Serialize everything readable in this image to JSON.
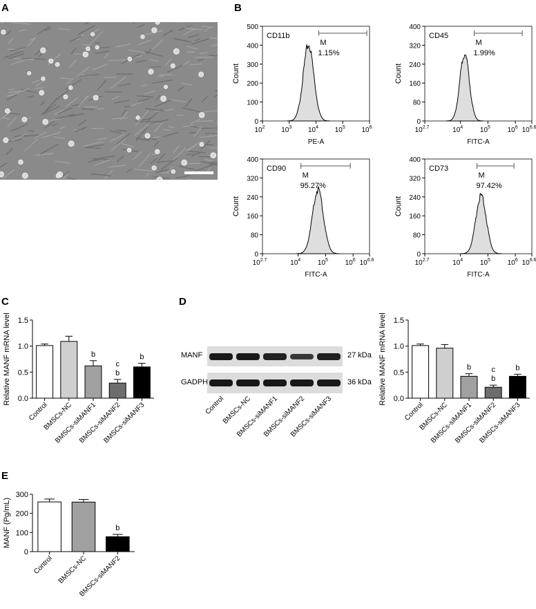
{
  "panels": {
    "A": "A",
    "B": "B",
    "C": "C",
    "D": "D",
    "E": "E"
  },
  "chart_data": [
    {
      "type": "histogram",
      "panel": "B",
      "marker": "CD11b",
      "xlabel": "PE-A",
      "ylabel": "Count",
      "gate_label": "M",
      "gate_percent": "1.15%",
      "x_scale": "log",
      "x_ticks": [
        {
          "e": "2",
          "v": 2
        },
        {
          "e": "3",
          "v": 3
        },
        {
          "e": "4",
          "v": 4
        },
        {
          "e": "5",
          "v": 5
        },
        {
          "e": "6",
          "v": 6
        }
      ],
      "xlim": [
        2,
        6
      ],
      "ylim": [
        0,
        500
      ],
      "y_ticks": [
        0,
        100,
        200,
        300,
        400,
        500
      ],
      "gate": [
        4.1,
        5.9
      ],
      "peak": {
        "center": 3.72,
        "height": 400,
        "sigma": 0.2
      }
    },
    {
      "type": "histogram",
      "panel": "B",
      "marker": "CD45",
      "xlabel": "FITC-A",
      "ylabel": "Count",
      "gate_label": "M",
      "gate_percent": "1.99%",
      "x_scale": "log",
      "x_ticks": [
        {
          "e": "2.7",
          "v": 2.7
        },
        {
          "e": "4",
          "v": 4
        },
        {
          "e": "5",
          "v": 5
        },
        {
          "e": "6",
          "v": 6
        },
        {
          "e": "6.6",
          "v": 6.6
        }
      ],
      "xlim": [
        2.7,
        6.6
      ],
      "ylim": [
        0,
        400
      ],
      "y_ticks": [
        0,
        80,
        160,
        240,
        320,
        400
      ],
      "gate": [
        4.5,
        6.25
      ],
      "peak": {
        "center": 4.15,
        "height": 285,
        "sigma": 0.17
      }
    },
    {
      "type": "histogram",
      "panel": "B",
      "marker": "CD90",
      "xlabel": "FITC-A",
      "ylabel": "Count",
      "gate_label": "M",
      "gate_percent": "95.27%",
      "x_scale": "log",
      "x_ticks": [
        {
          "e": "2.7",
          "v": 2.7
        },
        {
          "e": "4",
          "v": 4
        },
        {
          "e": "5",
          "v": 5
        },
        {
          "e": "6",
          "v": 6
        },
        {
          "e": "6.6",
          "v": 6.6
        }
      ],
      "xlim": [
        2.7,
        6.6
      ],
      "ylim": [
        0,
        400
      ],
      "y_ticks": [
        0,
        80,
        160,
        240,
        320,
        400
      ],
      "gate": [
        4.1,
        5.9
      ],
      "peak": {
        "center": 4.72,
        "height": 270,
        "sigma": 0.2
      }
    },
    {
      "type": "histogram",
      "panel": "B",
      "marker": "CD73",
      "xlabel": "FITC-A",
      "ylabel": "Count",
      "gate_label": "M",
      "gate_percent": "97.42%",
      "x_scale": "log",
      "x_ticks": [
        {
          "e": "2.7",
          "v": 2.7
        },
        {
          "e": "4",
          "v": 4
        },
        {
          "e": "5",
          "v": 5
        },
        {
          "e": "6",
          "v": 6
        },
        {
          "e": "6.6",
          "v": 6.6
        }
      ],
      "xlim": [
        2.7,
        6.6
      ],
      "ylim": [
        0,
        400
      ],
      "y_ticks": [
        0,
        80,
        160,
        240,
        320,
        400
      ],
      "gate": [
        4.6,
        5.95
      ],
      "peak": {
        "center": 4.75,
        "height": 245,
        "sigma": 0.19
      }
    },
    {
      "type": "bar",
      "panel": "C",
      "ylabel": "Relative MANF mRNA level",
      "ylim": [
        0,
        1.5
      ],
      "y_ticks": [
        "0.0",
        "0.5",
        "1.0",
        "1.5"
      ],
      "categories": [
        "Control",
        "BMSCs-NC",
        "BMSCs-siMANF1",
        "BMSCs-siMANF2",
        "BMSCs-siMANF3"
      ],
      "values": [
        1.01,
        1.09,
        0.62,
        0.29,
        0.6
      ],
      "errors": [
        0.03,
        0.1,
        0.1,
        0.07,
        0.07
      ],
      "colors": [
        "#ffffff",
        "#cfcfcf",
        "#a0a0a0",
        "#6d6d6d",
        "#000000"
      ],
      "annotations": [
        [],
        [],
        [
          "b"
        ],
        [
          "c",
          "b"
        ],
        [
          "b"
        ]
      ]
    },
    {
      "type": "bar",
      "panel": "D",
      "ylabel": "Relative MANF mRNA level",
      "ylim": [
        0,
        1.5
      ],
      "y_ticks": [
        "0.0",
        "0.5",
        "1.0",
        "1.5"
      ],
      "categories": [
        "Control",
        "BMSCs-NC",
        "BMSCs-siMANF1",
        "BMSCs-siMANF2",
        "BMSCs-siMANF3"
      ],
      "values": [
        1.01,
        0.96,
        0.42,
        0.21,
        0.42
      ],
      "errors": [
        0.03,
        0.07,
        0.05,
        0.04,
        0.04
      ],
      "colors": [
        "#ffffff",
        "#cfcfcf",
        "#a0a0a0",
        "#6d6d6d",
        "#000000"
      ],
      "annotations": [
        [],
        [],
        [
          "b"
        ],
        [
          "c",
          "b"
        ],
        [
          "b"
        ]
      ]
    },
    {
      "type": "bar",
      "panel": "E",
      "ylabel": "MANF (Pg/mL)",
      "ylim": [
        0,
        300
      ],
      "y_ticks": [
        "0",
        "100",
        "200",
        "300"
      ],
      "categories": [
        "Control",
        "BMSCs-NC",
        "BMSCs-siMANF2"
      ],
      "values": [
        260,
        259,
        78
      ],
      "errors": [
        15,
        14,
        12
      ],
      "colors": [
        "#ffffff",
        "#a0a0a0",
        "#000000"
      ],
      "annotations": [
        [],
        [],
        [
          "b"
        ]
      ]
    }
  ],
  "western": {
    "rows": [
      {
        "label": "MANF",
        "size": "27 kDa",
        "intensity": [
          0.95,
          0.95,
          0.8,
          0.5,
          0.85
        ]
      },
      {
        "label": "GADPH",
        "size": "36 kDa",
        "intensity": [
          0.95,
          0.95,
          0.95,
          0.95,
          0.95
        ]
      }
    ],
    "lanes": [
      "Control",
      "BMSCs-NC",
      "BMSCs-siMANF1",
      "BMSCs-siMANF2",
      "BMSCs-siMANF3"
    ]
  }
}
